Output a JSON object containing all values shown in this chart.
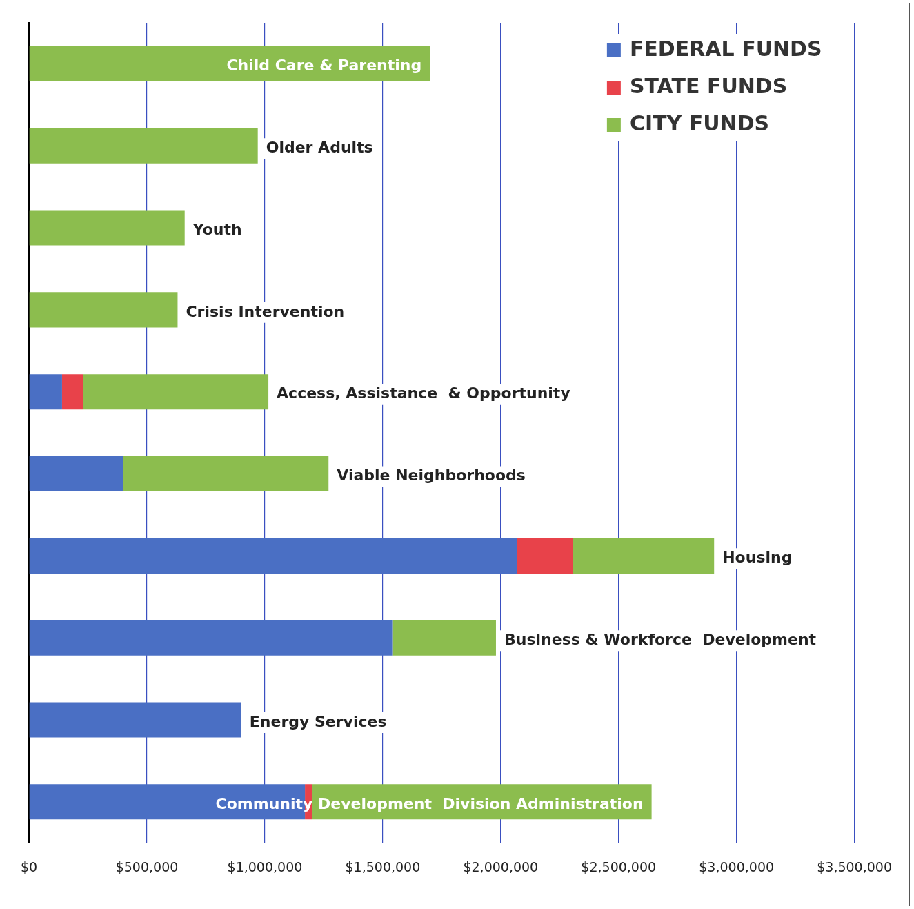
{
  "chart_data": {
    "type": "bar",
    "orientation": "horizontal",
    "stacked": true,
    "categories": [
      "Child Care & Parenting",
      "Older Adults",
      "Youth",
      "Crisis Intervention",
      "Access, Assistance  & Opportunity",
      "Viable Neighborhoods",
      "Housing",
      "Business & Workforce  Development",
      "Energy Services",
      "Community Development  Division Administration"
    ],
    "series": [
      {
        "name": "FEDERAL FUNDS",
        "color": "#4a6fc4",
        "values": [
          null,
          null,
          null,
          null,
          140000,
          400000,
          2070000,
          1540000,
          900000,
          1170000
        ]
      },
      {
        "name": "STATE FUNDS",
        "color": "#e8424a",
        "values": [
          null,
          null,
          null,
          null,
          90000,
          null,
          235000,
          null,
          null,
          30000
        ]
      },
      {
        "name": "CITY FUNDS",
        "color": "#8cbd4e",
        "values": [
          1700000,
          970000,
          660000,
          630000,
          785000,
          870000,
          600000,
          440000,
          null,
          1440000
        ]
      }
    ],
    "xlim": [
      0,
      3500000
    ],
    "xticks": [
      {
        "value": 0,
        "label": "$0"
      },
      {
        "value": 500000,
        "label": "$500,000"
      },
      {
        "value": 1000000,
        "label": "$1,000,000"
      },
      {
        "value": 1500000,
        "label": "$1,500,000"
      },
      {
        "value": 2000000,
        "label": "$2,000,000"
      },
      {
        "value": 2500000,
        "label": "$2,500,000"
      },
      {
        "value": 3000000,
        "label": "$3,000,000"
      },
      {
        "value": 3500000,
        "label": "$3,500,000"
      }
    ],
    "grid": "x",
    "legend": "top right",
    "tick_labels": "x"
  }
}
